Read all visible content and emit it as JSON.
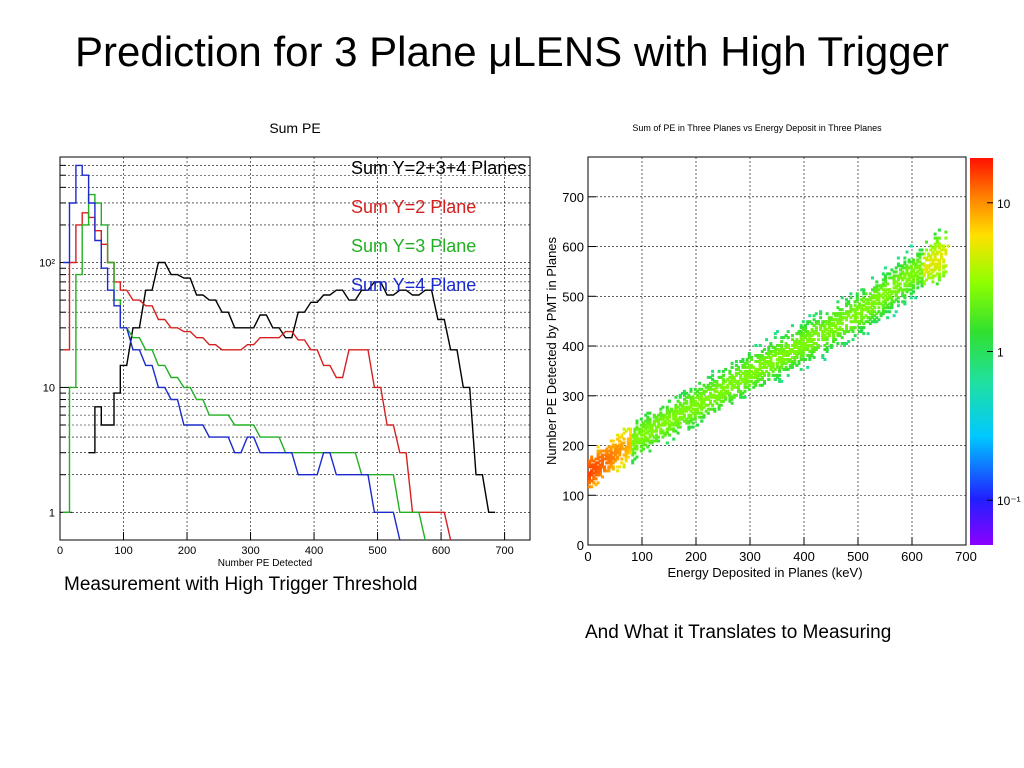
{
  "slide": {
    "title": "Prediction for 3 Plane μLENS with High Trigger",
    "caption_left": "Measurement with High Trigger Threshold",
    "caption_right": "And What it Translates to Measuring"
  },
  "chart_data": [
    {
      "type": "line",
      "title": "Sum PE",
      "xlabel": "Number PE Detected",
      "ylabel": "",
      "xlim": [
        0,
        740
      ],
      "ylim": [
        0.6,
        700
      ],
      "yscale": "log",
      "x_ticks": [
        "0",
        "100",
        "200",
        "300",
        "400",
        "500",
        "600",
        "700"
      ],
      "y_ticks": [
        "1",
        "10",
        "10²"
      ],
      "grid": true,
      "legend_placement": "top-right",
      "x": [
        10,
        20,
        30,
        40,
        50,
        60,
        70,
        80,
        90,
        100,
        120,
        140,
        160,
        180,
        200,
        220,
        240,
        260,
        280,
        300,
        320,
        340,
        360,
        380,
        400,
        420,
        440,
        460,
        480,
        500,
        520,
        540,
        560,
        580,
        600,
        620,
        640,
        660,
        680
      ],
      "series": [
        {
          "name": "Sum Y=2+3+4 Planes",
          "color": "#000000",
          "values": [
            0,
            0,
            0,
            0,
            3,
            7,
            5,
            5,
            9,
            15,
            30,
            60,
            100,
            80,
            75,
            55,
            50,
            40,
            30,
            30,
            38,
            30,
            25,
            40,
            48,
            55,
            60,
            50,
            60,
            70,
            55,
            60,
            55,
            60,
            35,
            20,
            10,
            2,
            1
          ]
        },
        {
          "name": "Sum Y=2 Plane",
          "color": "#d62020",
          "values": [
            20,
            100,
            200,
            250,
            230,
            180,
            140,
            100,
            70,
            60,
            50,
            45,
            35,
            30,
            28,
            25,
            22,
            20,
            20,
            22,
            25,
            25,
            28,
            24,
            20,
            15,
            12,
            20,
            20,
            10,
            5,
            3,
            1,
            1,
            1,
            0,
            0,
            0,
            0
          ]
        },
        {
          "name": "Sum Y=3 Plane",
          "color": "#22b022",
          "values": [
            1,
            10,
            80,
            200,
            350,
            300,
            200,
            100,
            50,
            30,
            25,
            20,
            15,
            12,
            10,
            8,
            6,
            6,
            5,
            5,
            4,
            4,
            3,
            3,
            3,
            3,
            3,
            3,
            2,
            2,
            2,
            1,
            1,
            0,
            0,
            0,
            0,
            0,
            0
          ]
        },
        {
          "name": "Sum Y=4 Plane",
          "color": "#1a2acc",
          "values": [
            100,
            300,
            600,
            500,
            300,
            150,
            90,
            60,
            45,
            30,
            20,
            15,
            10,
            8,
            5,
            5,
            4,
            4,
            3,
            4,
            3,
            3,
            3,
            2,
            2,
            3,
            2,
            2,
            2,
            1,
            1,
            0,
            0,
            0,
            0,
            0,
            0,
            0,
            0
          ]
        }
      ]
    },
    {
      "type": "heatmap",
      "title": "Sum of PE in Three Planes vs Energy Deposit in Three Planes",
      "xlabel": "Energy Deposited in Planes (keV)",
      "ylabel": "Number PE Detected by PMT in Planes",
      "xlim": [
        0,
        700
      ],
      "ylim": [
        0,
        780
      ],
      "x_ticks": [
        "0",
        "100",
        "200",
        "300",
        "400",
        "500",
        "600",
        "700"
      ],
      "y_ticks": [
        "0",
        "100",
        "200",
        "300",
        "400",
        "500",
        "600",
        "700"
      ],
      "colorbar": {
        "scale": "log",
        "ticks": [
          "10⁻¹",
          "1",
          "10"
        ],
        "range": [
          0.05,
          20
        ]
      },
      "grid": true,
      "trend": {
        "x": [
          0,
          100,
          200,
          300,
          400,
          500,
          600,
          665
        ],
        "y": [
          150,
          225,
          285,
          350,
          410,
          470,
          550,
          590
        ]
      }
    }
  ]
}
